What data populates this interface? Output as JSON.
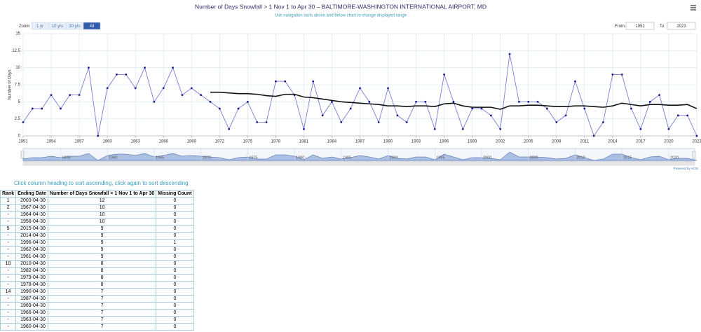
{
  "chart_data": {
    "type": "line",
    "title": "Number of Days Snowfall > 1 Nov 1 to Apr 30 – BALTIMORE-WASHINGTON INTERNATIONAL AIRPORT, MD",
    "subtitle": "Use navigation tools above and below chart to change displayed range",
    "y_label": "Number of Days",
    "x": [
      1951,
      1952,
      1953,
      1954,
      1955,
      1956,
      1957,
      1958,
      1959,
      1960,
      1961,
      1962,
      1963,
      1964,
      1965,
      1966,
      1967,
      1968,
      1969,
      1970,
      1971,
      1972,
      1973,
      1974,
      1975,
      1976,
      1977,
      1978,
      1979,
      1980,
      1981,
      1982,
      1983,
      1984,
      1985,
      1986,
      1987,
      1988,
      1989,
      1990,
      1991,
      1992,
      1993,
      1994,
      1995,
      1996,
      1997,
      1998,
      1999,
      2000,
      2001,
      2002,
      2003,
      2004,
      2005,
      2006,
      2007,
      2008,
      2009,
      2010,
      2011,
      2012,
      2013,
      2014,
      2015,
      2016,
      2017,
      2018,
      2019,
      2020,
      2021,
      2022,
      2023
    ],
    "series": [
      {
        "color": "#7b7bd6",
        "marker_color": "#1a1a8c",
        "values": [
          2,
          4,
          4,
          6,
          4,
          6,
          6,
          10,
          0,
          7,
          9,
          9,
          7,
          10,
          5,
          7,
          10,
          6,
          7,
          6,
          5,
          4,
          1,
          4,
          5,
          2,
          2,
          8,
          8,
          6,
          1,
          8,
          3,
          5,
          2,
          4,
          7,
          5,
          2,
          7,
          3,
          2,
          5,
          5,
          1,
          9,
          5,
          1,
          4,
          4,
          3,
          1,
          12,
          5,
          5,
          5,
          4,
          2,
          3,
          8,
          4,
          0,
          2,
          9,
          9,
          4,
          1,
          5,
          6,
          1,
          3,
          3,
          0
        ]
      },
      {
        "color": "#111111",
        "values": [
          null,
          null,
          null,
          null,
          null,
          null,
          null,
          null,
          null,
          null,
          null,
          null,
          null,
          null,
          null,
          null,
          null,
          null,
          null,
          null,
          6.4,
          6.4,
          6.3,
          6.2,
          6.2,
          6.1,
          5.9,
          5.8,
          6.1,
          6.1,
          5.7,
          5.6,
          5.4,
          5.2,
          5.0,
          4.9,
          4.8,
          4.7,
          4.6,
          4.4,
          4.4,
          4.3,
          4.4,
          4.4,
          4.3,
          4.7,
          4.8,
          4.4,
          4.2,
          4.2,
          4.2,
          3.9,
          4.4,
          4.4,
          4.5,
          4.5,
          4.4,
          4.3,
          4.3,
          4.4,
          4.4,
          4.3,
          4.2,
          4.4,
          4.8,
          4.6,
          4.4,
          4.6,
          4.6,
          4.5,
          4.5,
          4.6,
          4.0
        ]
      }
    ],
    "xlim": [
      1951,
      2023
    ],
    "xticks": [
      1951,
      1954,
      1957,
      1960,
      1963,
      1966,
      1969,
      1972,
      1975,
      1978,
      1981,
      1984,
      1987,
      1990,
      1993,
      1996,
      1999,
      2002,
      2005,
      2008,
      2011,
      2014,
      2017,
      2020,
      2023
    ],
    "ylim": [
      0,
      15
    ],
    "yticks": [
      0,
      2.5,
      5,
      7.5,
      10,
      12.5,
      15
    ],
    "grid": true,
    "navigator_xticks": [
      1955,
      1960,
      1965,
      1970,
      1975,
      1980,
      1985,
      1990,
      1995,
      2000,
      2005,
      2010,
      2015,
      2020
    ]
  },
  "controls": {
    "zoom_label": "Zoom",
    "zoom_buttons": [
      "1 yr",
      "10 yrs",
      "30 yrs",
      "All"
    ],
    "from_label": "From",
    "from_value": "1951",
    "to_label": "To",
    "to_value": "2023",
    "credit": "Powered by ACIS"
  },
  "table": {
    "hint": "Click column heading to sort ascending, click again to sort descending",
    "columns": [
      "Rank",
      "Ending Date",
      "Number of Days Snowfall > 1 Nov 1 to Apr 30",
      "Missing Count"
    ],
    "rows": [
      [
        1,
        "2003-04-30",
        12,
        0
      ],
      [
        2,
        "1967-04-30",
        10,
        0
      ],
      [
        "-",
        "1964-04-30",
        10,
        0
      ],
      [
        "-",
        "1958-04-30",
        10,
        0
      ],
      [
        5,
        "2015-04-30",
        9,
        0
      ],
      [
        "-",
        "2014-04-30",
        9,
        0
      ],
      [
        "-",
        "1996-04-30",
        9,
        1
      ],
      [
        "-",
        "1962-04-30",
        9,
        0
      ],
      [
        "-",
        "1961-04-30",
        9,
        0
      ],
      [
        10,
        "2010-04-30",
        8,
        0
      ],
      [
        "-",
        "1982-04-30",
        8,
        0
      ],
      [
        "-",
        "1979-04-30",
        8,
        0
      ],
      [
        "-",
        "1978-04-30",
        8,
        0
      ],
      [
        14,
        "1990-04-30",
        7,
        0
      ],
      [
        "-",
        "1987-04-30",
        7,
        0
      ],
      [
        "-",
        "1969-04-30",
        7,
        0
      ],
      [
        "-",
        "1966-04-30",
        7,
        0
      ],
      [
        "-",
        "1963-04-30",
        7,
        0
      ],
      [
        "-",
        "1960-04-30",
        7,
        0
      ]
    ]
  }
}
